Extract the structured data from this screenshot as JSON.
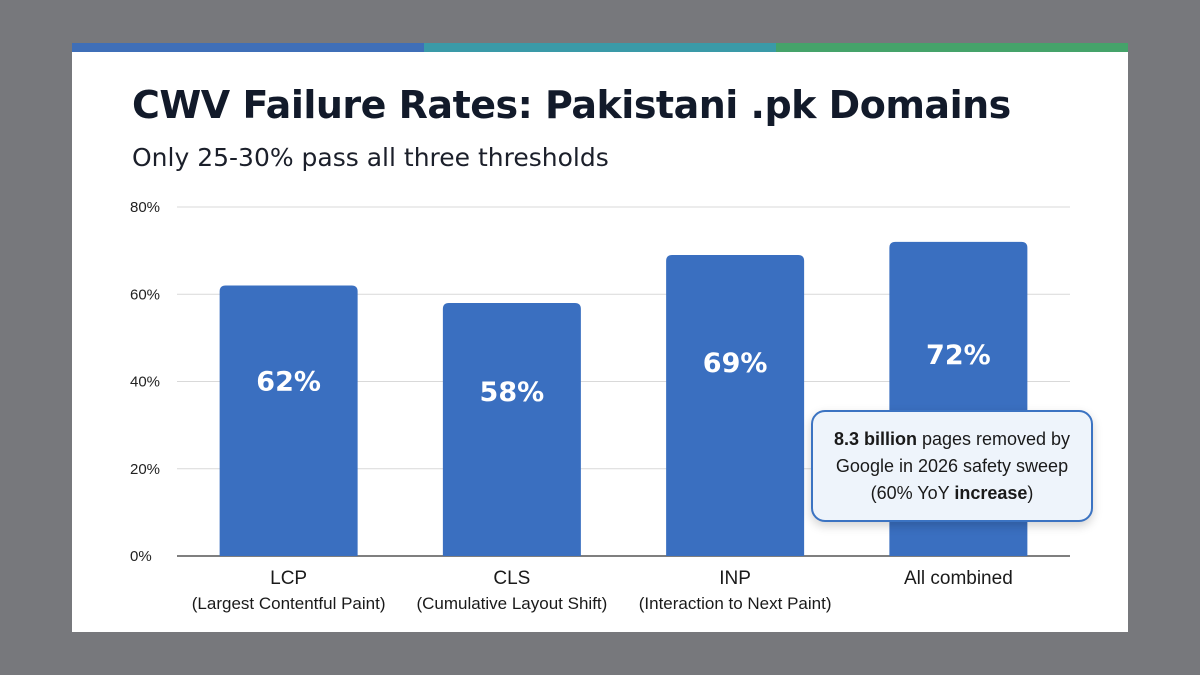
{
  "header": {
    "title": "CWV Failure Rates: Pakistani .pk Domains",
    "subtitle": "Only 25-30% pass all three thresholds",
    "accent_colors": [
      "#3f6fb8",
      "#3a9aa8",
      "#45a36a"
    ]
  },
  "callout": {
    "bold_1": "8.3 billion",
    "text_1": " pages removed by Google in 2026 safety sweep (60% YoY ",
    "bold_2": "increase",
    "text_2": ")"
  },
  "chart_data": {
    "type": "bar",
    "categories": [
      "LCP",
      "CLS",
      "INP",
      "All combined"
    ],
    "category_sublabels": [
      "(Largest Contentful Paint)",
      "(Cumulative Layout Shift)",
      "(Interaction to Next Paint)",
      ""
    ],
    "values": [
      62,
      58,
      69,
      72
    ],
    "data_labels": [
      "62%",
      "58%",
      "69%",
      "72%"
    ],
    "ylim": [
      0,
      80
    ],
    "yticks": [
      0,
      20,
      40,
      60,
      80
    ],
    "ytick_labels": [
      "0%",
      "20%",
      "40%",
      "60%",
      "80%"
    ],
    "grid": true,
    "bar_color": "#3a6fc0",
    "title": "",
    "xlabel": "",
    "ylabel": ""
  }
}
